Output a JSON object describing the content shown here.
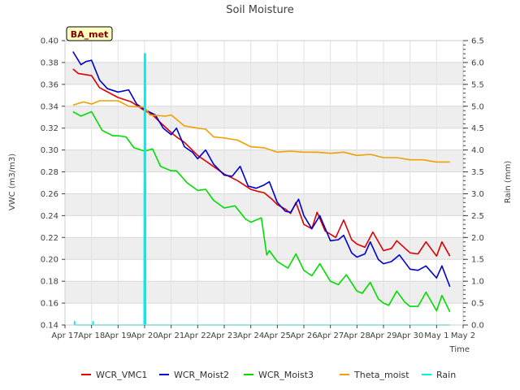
{
  "chart_data": {
    "type": "line",
    "title": "Soil Moisture",
    "xlabel": "Time",
    "ylabel": "VWC (m3/m3)",
    "y2label": "Rain (mm)",
    "badge": "BA_met",
    "xlim": [
      0,
      15
    ],
    "ylim": [
      0.14,
      0.4
    ],
    "y2lim": [
      0.0,
      6.5
    ],
    "x_ticks": [
      0,
      1,
      2,
      3,
      4,
      5,
      6,
      7,
      8,
      9,
      10,
      11,
      12,
      13,
      14,
      15
    ],
    "x_tick_labels": [
      "Apr 17",
      "Apr 18",
      "Apr 19",
      "Apr 20",
      "Apr 21",
      "Apr 22",
      "Apr 23",
      "Apr 24",
      "Apr 25",
      "Apr 26",
      "Apr 27",
      "Apr 28",
      "Apr 29",
      "Apr 30",
      "May 1",
      "May 2"
    ],
    "y_ticks": [
      0.14,
      0.16,
      0.18,
      0.2,
      0.22,
      0.24,
      0.26,
      0.28,
      0.3,
      0.32,
      0.34,
      0.36,
      0.38,
      0.4
    ],
    "y_tick_labels": [
      "0.14",
      "0.16",
      "0.18",
      "0.20",
      "0.22",
      "0.24",
      "0.26",
      "0.28",
      "0.30",
      "0.32",
      "0.34",
      "0.36",
      "0.38",
      "0.40"
    ],
    "y2_ticks": [
      0.0,
      0.5,
      1.0,
      1.5,
      2.0,
      2.5,
      3.0,
      3.5,
      4.0,
      4.5,
      5.0,
      5.5,
      6.0,
      6.5
    ],
    "y2_tick_labels": [
      "0.0",
      "0.5",
      "1.0",
      "1.5",
      "2.0",
      "2.5",
      "3.0",
      "3.5",
      "4.0",
      "4.5",
      "5.0",
      "5.5",
      "6.0",
      "6.5"
    ],
    "legend_position": "bottom",
    "series": [
      {
        "name": "WCR_VMC1",
        "color": "#dd0000",
        "axis": "left",
        "x": [
          0.3,
          0.5,
          1.0,
          1.3,
          2.0,
          2.5,
          3.0,
          3.3,
          3.6,
          4.0,
          4.2,
          4.5,
          5.0,
          5.3,
          6.0,
          6.5,
          7.0,
          7.3,
          7.5,
          7.8,
          8.0,
          8.3,
          8.5,
          8.7,
          9.0,
          9.3,
          9.5,
          9.8,
          10.0,
          10.2,
          10.5,
          10.8,
          11.0,
          11.3,
          11.6,
          12.0,
          12.3,
          12.5,
          13.0,
          13.3,
          13.6,
          14.0,
          14.2,
          14.5
        ],
        "values": [
          0.374,
          0.37,
          0.368,
          0.357,
          0.348,
          0.344,
          0.336,
          0.332,
          0.325,
          0.316,
          0.312,
          0.307,
          0.295,
          0.29,
          0.278,
          0.272,
          0.264,
          0.262,
          0.261,
          0.255,
          0.25,
          0.246,
          0.242,
          0.252,
          0.232,
          0.228,
          0.243,
          0.226,
          0.223,
          0.22,
          0.236,
          0.218,
          0.214,
          0.211,
          0.225,
          0.208,
          0.21,
          0.217,
          0.206,
          0.205,
          0.216,
          0.203,
          0.216,
          0.203
        ]
      },
      {
        "name": "WCR_Moist2",
        "color": "#0000cc",
        "axis": "left",
        "x": [
          0.3,
          0.6,
          0.8,
          1.0,
          1.3,
          1.6,
          2.0,
          2.4,
          2.7,
          3.0,
          3.4,
          3.7,
          4.0,
          4.2,
          4.5,
          4.8,
          5.0,
          5.3,
          5.6,
          6.0,
          6.3,
          6.6,
          6.9,
          7.2,
          7.5,
          7.7,
          8.0,
          8.3,
          8.5,
          8.8,
          9.0,
          9.3,
          9.6,
          10.0,
          10.3,
          10.5,
          10.8,
          11.0,
          11.3,
          11.5,
          11.8,
          12.0,
          12.3,
          12.6,
          13.0,
          13.3,
          13.6,
          14.0,
          14.2,
          14.5
        ],
        "values": [
          0.39,
          0.378,
          0.381,
          0.382,
          0.364,
          0.356,
          0.353,
          0.355,
          0.342,
          0.337,
          0.332,
          0.32,
          0.314,
          0.32,
          0.303,
          0.298,
          0.292,
          0.3,
          0.287,
          0.277,
          0.276,
          0.285,
          0.267,
          0.265,
          0.268,
          0.271,
          0.252,
          0.244,
          0.243,
          0.255,
          0.24,
          0.228,
          0.24,
          0.217,
          0.218,
          0.222,
          0.206,
          0.202,
          0.205,
          0.216,
          0.2,
          0.196,
          0.198,
          0.204,
          0.191,
          0.19,
          0.194,
          0.183,
          0.194,
          0.175
        ]
      },
      {
        "name": "WCR_Moist3",
        "color": "#00dd00",
        "axis": "left",
        "x": [
          0.3,
          0.6,
          0.8,
          1.0,
          1.4,
          1.8,
          2.0,
          2.3,
          2.6,
          3.0,
          3.3,
          3.6,
          4.0,
          4.2,
          4.6,
          5.0,
          5.3,
          5.6,
          6.0,
          6.4,
          6.8,
          7.0,
          7.4,
          7.6,
          7.7,
          8.0,
          8.4,
          8.7,
          9.0,
          9.3,
          9.6,
          10.0,
          10.3,
          10.6,
          11.0,
          11.2,
          11.5,
          11.8,
          12.0,
          12.2,
          12.5,
          12.8,
          13.0,
          13.3,
          13.6,
          14.0,
          14.2,
          14.5
        ],
        "values": [
          0.335,
          0.331,
          0.333,
          0.335,
          0.318,
          0.313,
          0.313,
          0.312,
          0.302,
          0.299,
          0.301,
          0.285,
          0.281,
          0.281,
          0.27,
          0.263,
          0.264,
          0.254,
          0.247,
          0.249,
          0.237,
          0.234,
          0.238,
          0.204,
          0.208,
          0.198,
          0.192,
          0.205,
          0.19,
          0.185,
          0.196,
          0.18,
          0.177,
          0.186,
          0.171,
          0.169,
          0.179,
          0.164,
          0.16,
          0.158,
          0.171,
          0.161,
          0.157,
          0.157,
          0.17,
          0.153,
          0.167,
          0.152
        ]
      },
      {
        "name": "Theta_moist",
        "color": "#f0a000",
        "axis": "left",
        "x": [
          0.3,
          0.7,
          1.0,
          1.3,
          2.0,
          2.4,
          3.0,
          3.2,
          3.8,
          4.0,
          4.5,
          5.0,
          5.3,
          5.6,
          6.0,
          6.5,
          7.0,
          7.5,
          8.0,
          8.5,
          9.0,
          9.5,
          10.0,
          10.5,
          11.0,
          11.5,
          12.0,
          12.5,
          13.0,
          13.5,
          14.0,
          14.5
        ],
        "values": [
          0.341,
          0.344,
          0.342,
          0.345,
          0.345,
          0.34,
          0.339,
          0.332,
          0.331,
          0.332,
          0.322,
          0.32,
          0.319,
          0.312,
          0.311,
          0.309,
          0.303,
          0.302,
          0.298,
          0.299,
          0.298,
          0.298,
          0.297,
          0.298,
          0.295,
          0.296,
          0.293,
          0.293,
          0.291,
          0.291,
          0.289,
          0.289
        ]
      },
      {
        "name": "Rain",
        "color": "#00eeee",
        "axis": "right",
        "x": [
          0.35,
          0.36,
          0.37,
          1.05,
          1.06,
          1.07,
          2.98,
          2.99,
          3.0,
          3.01,
          3.02,
          3.03,
          3.04,
          14.5
        ],
        "values": [
          0.0,
          0.08,
          0.0,
          0.0,
          0.08,
          0.0,
          0.0,
          6.2,
          0.0,
          6.2,
          0.0,
          6.2,
          0.0,
          0.0
        ]
      }
    ]
  }
}
